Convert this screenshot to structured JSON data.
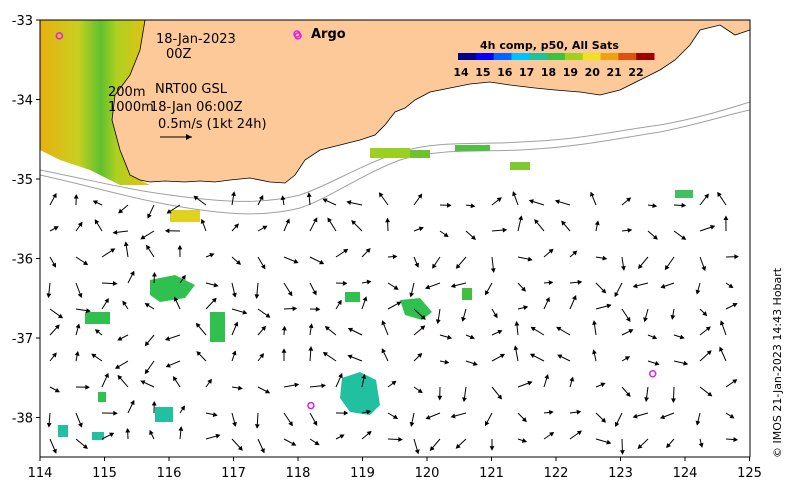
{
  "map": {
    "date_label": "18-Jan-2023",
    "time_label": "00Z",
    "argo_label": "Argo",
    "isobath_200": "200m",
    "isobath_1000": "1000m",
    "current_source": "NRT00 GSL",
    "current_time": "18-Jan 06:00Z",
    "vector_scale": "0.5m/s (1kt 24h)",
    "colorbar_title": "4h comp, p50, All Sats",
    "colorbar_ticks": [
      "14",
      "15",
      "16",
      "17",
      "18",
      "19",
      "20",
      "21",
      "22"
    ],
    "colorbar_colors": [
      "#00008b",
      "#0000ff",
      "#0066ff",
      "#00c0ff",
      "#20c0a0",
      "#40c040",
      "#a0d020",
      "#f0e020",
      "#f0a010",
      "#e05010",
      "#a00000"
    ],
    "x_ticks": [
      "114",
      "115",
      "116",
      "117",
      "118",
      "119",
      "120",
      "121",
      "122",
      "123",
      "124",
      "125"
    ],
    "y_ticks": [
      "-33",
      "-34",
      "-35",
      "-36",
      "-37",
      "-38"
    ],
    "copyright": "© IMOS 21-Jan-2023 14:43 Hobart",
    "argo_floats": [
      {
        "lon": 114.3,
        "lat": -33.2
      },
      {
        "lon": 118.0,
        "lat": -33.2
      },
      {
        "lon": 118.2,
        "lat": -37.85
      },
      {
        "lon": 123.5,
        "lat": -37.45
      }
    ]
  }
}
